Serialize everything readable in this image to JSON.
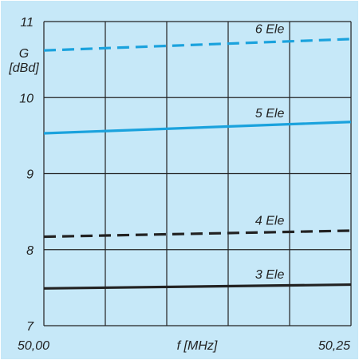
{
  "chart_data": {
    "type": "line",
    "title": "",
    "ylabel_lines": [
      "G",
      "[dBd]"
    ],
    "xlabel": "f [MHz]",
    "x_tick_labels": [
      "50,00",
      "50,25"
    ],
    "xlim": [
      50.0,
      50.25
    ],
    "ylim": [
      7,
      11
    ],
    "y_ticks": [
      7,
      8,
      9,
      10,
      11
    ],
    "y_tick_labels": [
      "7",
      "8",
      "9",
      "10",
      "11"
    ],
    "x_grid_count": 5,
    "grid": true,
    "colors": {
      "background": "#c6e8f8",
      "panel_border": "#c6e8f8",
      "grid": "#222222",
      "text": "#222222"
    },
    "series": [
      {
        "name": "6 Ele",
        "color": "#1aa2dd",
        "dashed": true,
        "x": [
          50.0,
          50.25
        ],
        "y": [
          10.62,
          10.77
        ]
      },
      {
        "name": "5 Ele",
        "color": "#1aa2dd",
        "dashed": false,
        "x": [
          50.0,
          50.25
        ],
        "y": [
          9.53,
          9.68
        ]
      },
      {
        "name": "4 Ele",
        "color": "#222222",
        "dashed": true,
        "x": [
          50.0,
          50.25
        ],
        "y": [
          8.17,
          8.25
        ]
      },
      {
        "name": "3 Ele",
        "color": "#222222",
        "dashed": false,
        "x": [
          50.0,
          50.25
        ],
        "y": [
          7.49,
          7.54
        ]
      }
    ],
    "series_labels": [
      {
        "text": "6 Ele",
        "x": 50.172,
        "y": 10.85
      },
      {
        "text": "5 Ele",
        "x": 50.172,
        "y": 9.74
      },
      {
        "text": "4 Ele",
        "x": 50.172,
        "y": 8.33
      },
      {
        "text": "3 Ele",
        "x": 50.172,
        "y": 7.62
      }
    ]
  }
}
